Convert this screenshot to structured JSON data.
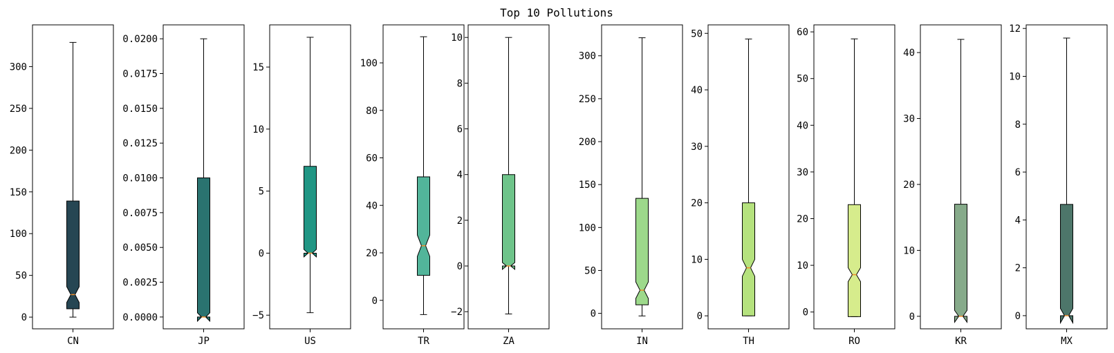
{
  "chart_data": {
    "type": "box",
    "title": "Top 10 Pollutions",
    "panels": [
      {
        "category": "CN",
        "color": "#264653",
        "ylim": [
          -14,
          350
        ],
        "ticks": [
          0,
          50,
          100,
          150,
          200,
          250,
          300
        ],
        "tick_labels": [
          "0",
          "50",
          "100",
          "150",
          "200",
          "250",
          "300"
        ],
        "whisker_low": 0,
        "q1": 10,
        "median": 27,
        "q3": 139,
        "whisker_high": 329,
        "notch_low": 17.5,
        "notch_high": 36.5
      },
      {
        "category": "JP",
        "color": "#2a7370",
        "ylim": [
          -0.00085,
          0.021
        ],
        "ticks": [
          0,
          0.0025,
          0.005,
          0.0075,
          0.01,
          0.0125,
          0.015,
          0.0175,
          0.02
        ],
        "tick_labels": [
          "0.0000",
          "0.0025",
          "0.0050",
          "0.0075",
          "0.0100",
          "0.0125",
          "0.0150",
          "0.0175",
          "0.0200"
        ],
        "whisker_low": 0,
        "q1": 0,
        "median": 0,
        "q3": 0.01,
        "whisker_high": 0.02,
        "notch_low": -0.0003,
        "notch_high": 0.0003
      },
      {
        "category": "US",
        "color": "#219684",
        "ylim": [
          -6.1,
          18.4
        ],
        "ticks": [
          -5,
          0,
          5,
          10,
          15
        ],
        "tick_labels": [
          "−5",
          "0",
          "5",
          "10",
          "15"
        ],
        "whisker_low": -4.8,
        "q1": 0,
        "median": 0,
        "q3": 7,
        "whisker_high": 17.4,
        "notch_low": -0.3,
        "notch_high": 0.3
      },
      {
        "category": "TR",
        "color": "#52b59a",
        "ylim": [
          -12,
          116
        ],
        "ticks": [
          0,
          20,
          40,
          60,
          80,
          100
        ],
        "tick_labels": [
          "0",
          "20",
          "40",
          "60",
          "80",
          "100"
        ],
        "whisker_low": -6,
        "q1": 10.5,
        "median": 23,
        "q3": 52,
        "whisker_high": 111,
        "notch_low": 18.5,
        "notch_high": 27.5
      },
      {
        "category": "ZA",
        "color": "#6ec48a",
        "ylim": [
          -2.75,
          10.55
        ],
        "ticks": [
          -2,
          0,
          2,
          4,
          6,
          8,
          10
        ],
        "tick_labels": [
          "−2",
          "0",
          "2",
          "4",
          "6",
          "8",
          "10"
        ],
        "whisker_low": -2.1,
        "q1": 0,
        "median": 0,
        "q3": 4,
        "whisker_high": 10,
        "notch_low": -0.15,
        "notch_high": 0.15
      },
      {
        "category": "IN",
        "color": "#9dd98b",
        "ylim": [
          -18,
          336
        ],
        "ticks": [
          0,
          50,
          100,
          150,
          200,
          250,
          300
        ],
        "tick_labels": [
          "0",
          "50",
          "100",
          "150",
          "200",
          "250",
          "300"
        ],
        "whisker_low": -3,
        "q1": 10,
        "median": 27,
        "q3": 134,
        "whisker_high": 321,
        "notch_low": 17.5,
        "notch_high": 36.5
      },
      {
        "category": "TH",
        "color": "#b5e27e",
        "ylim": [
          -2.3,
          51.5
        ],
        "ticks": [
          0,
          10,
          20,
          30,
          40,
          50
        ],
        "tick_labels": [
          "0",
          "10",
          "20",
          "30",
          "40",
          "50"
        ],
        "whisker_low": 0,
        "q1": 0,
        "median": 8.5,
        "q3": 20,
        "whisker_high": 49,
        "notch_low": 7,
        "notch_high": 10
      },
      {
        "category": "RO",
        "color": "#d6ec8c",
        "ylim": [
          -3.6,
          61.5
        ],
        "ticks": [
          0,
          10,
          20,
          30,
          40,
          50,
          60
        ],
        "tick_labels": [
          "0",
          "10",
          "20",
          "30",
          "40",
          "50",
          "60"
        ],
        "whisker_low": -1,
        "q1": -1,
        "median": 8,
        "q3": 23,
        "whisker_high": 58.5,
        "notch_low": 6.5,
        "notch_high": 9.5
      },
      {
        "category": "KR",
        "color": "#86aa8a",
        "ylim": [
          -1.9,
          44.2
        ],
        "ticks": [
          0,
          10,
          20,
          30,
          40
        ],
        "tick_labels": [
          "0",
          "10",
          "20",
          "30",
          "40"
        ],
        "whisker_low": 0,
        "q1": 0,
        "median": 0,
        "q3": 17,
        "whisker_high": 42,
        "notch_low": -0.9,
        "notch_high": 0.9
      },
      {
        "category": "MX",
        "color": "#4d766a",
        "ylim": [
          -0.55,
          12.15
        ],
        "ticks": [
          0,
          2,
          4,
          6,
          8,
          10,
          12
        ],
        "tick_labels": [
          "0",
          "2",
          "4",
          "6",
          "8",
          "10",
          "12"
        ],
        "whisker_low": 0,
        "q1": 0,
        "median": 0,
        "q3": 4.65,
        "whisker_high": 11.6,
        "notch_low": -0.3,
        "notch_high": 0.3
      }
    ],
    "median_color": "#f28e2b",
    "xlabel": "",
    "ylabel": "",
    "grid": false
  }
}
